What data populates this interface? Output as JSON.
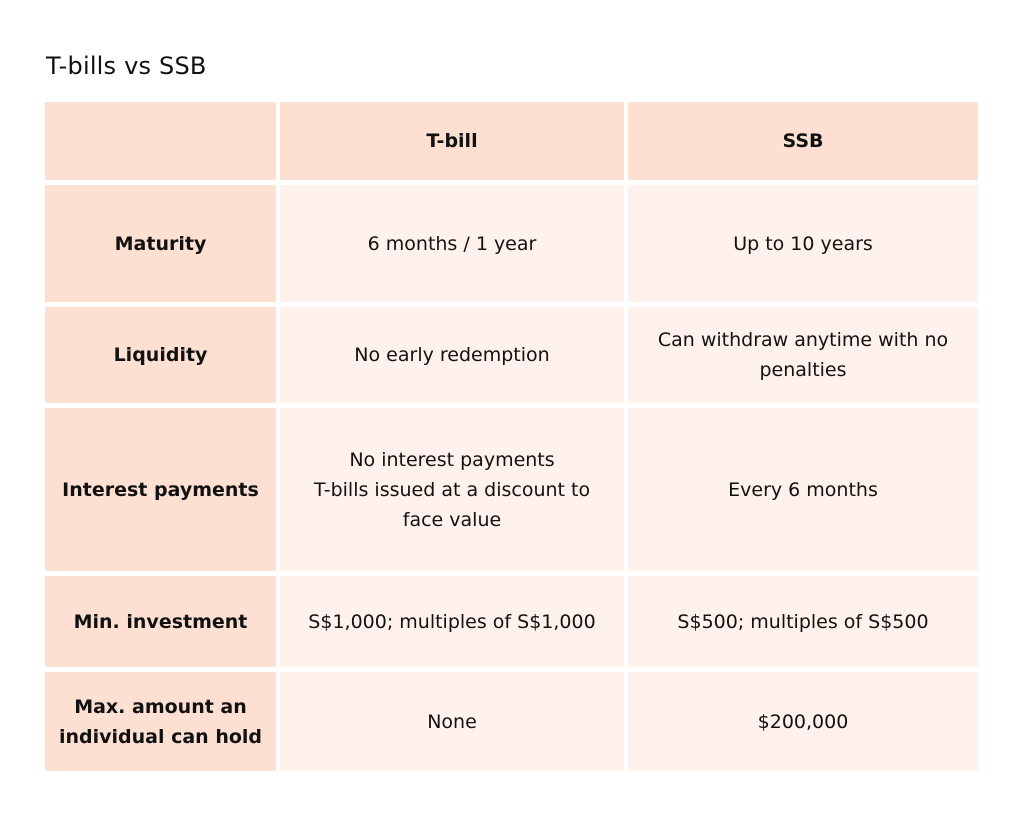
{
  "title": "T-bills vs SSB",
  "table": {
    "columns": [
      "",
      "T-bill",
      "SSB"
    ],
    "rows": [
      {
        "label": [
          "Maturity"
        ],
        "tbill": [
          "6 months / 1 year"
        ],
        "ssb": [
          "Up to 10 years"
        ]
      },
      {
        "label": [
          "Liquidity"
        ],
        "tbill": [
          "No early redemption"
        ],
        "ssb": [
          "Can withdraw anytime with no",
          "penalties"
        ]
      },
      {
        "label": [
          "Interest payments"
        ],
        "tbill": [
          "No interest payments",
          "T-bills issued at a discount to",
          "face value"
        ],
        "ssb": [
          "Every 6 months"
        ]
      },
      {
        "label": [
          "Min. investment"
        ],
        "tbill": [
          "S$1,000; multiples of S$1,000"
        ],
        "ssb": [
          "S$500; multiples of S$500"
        ]
      },
      {
        "label": [
          "Max. amount an",
          "individual can hold"
        ],
        "tbill": [
          "None"
        ],
        "ssb": [
          "$200,000"
        ]
      }
    ]
  },
  "colors": {
    "header_bg": "#fde0d2",
    "cell_bg": "#fff1eb"
  }
}
